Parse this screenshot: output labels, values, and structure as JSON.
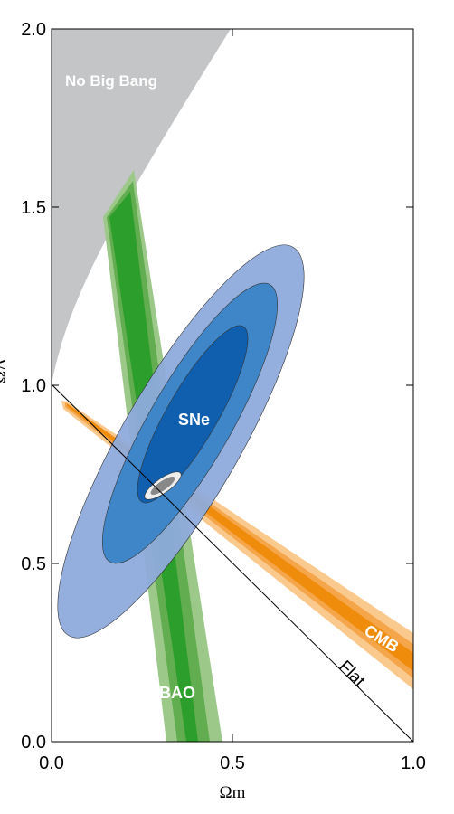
{
  "chart_data": {
    "type": "contour",
    "xlabel": "Ωm",
    "ylabel": "ΩΛ",
    "xlim": [
      0,
      1
    ],
    "ylim": [
      0,
      2
    ],
    "xticks": [
      {
        "value": 0,
        "label": "0.0"
      },
      {
        "value": 0.5,
        "label": "0.5"
      },
      {
        "value": 1,
        "label": "1.0"
      }
    ],
    "yticks": [
      {
        "value": 0,
        "label": "0.0"
      },
      {
        "value": 0.5,
        "label": "0.5"
      },
      {
        "value": 1,
        "label": "1.0"
      },
      {
        "value": 1.5,
        "label": "1.5"
      },
      {
        "value": 2,
        "label": "2.0"
      }
    ],
    "annotations": [
      "No Big Bang",
      "SNe",
      "BAO",
      "CMB",
      "Flat"
    ]
  }
}
